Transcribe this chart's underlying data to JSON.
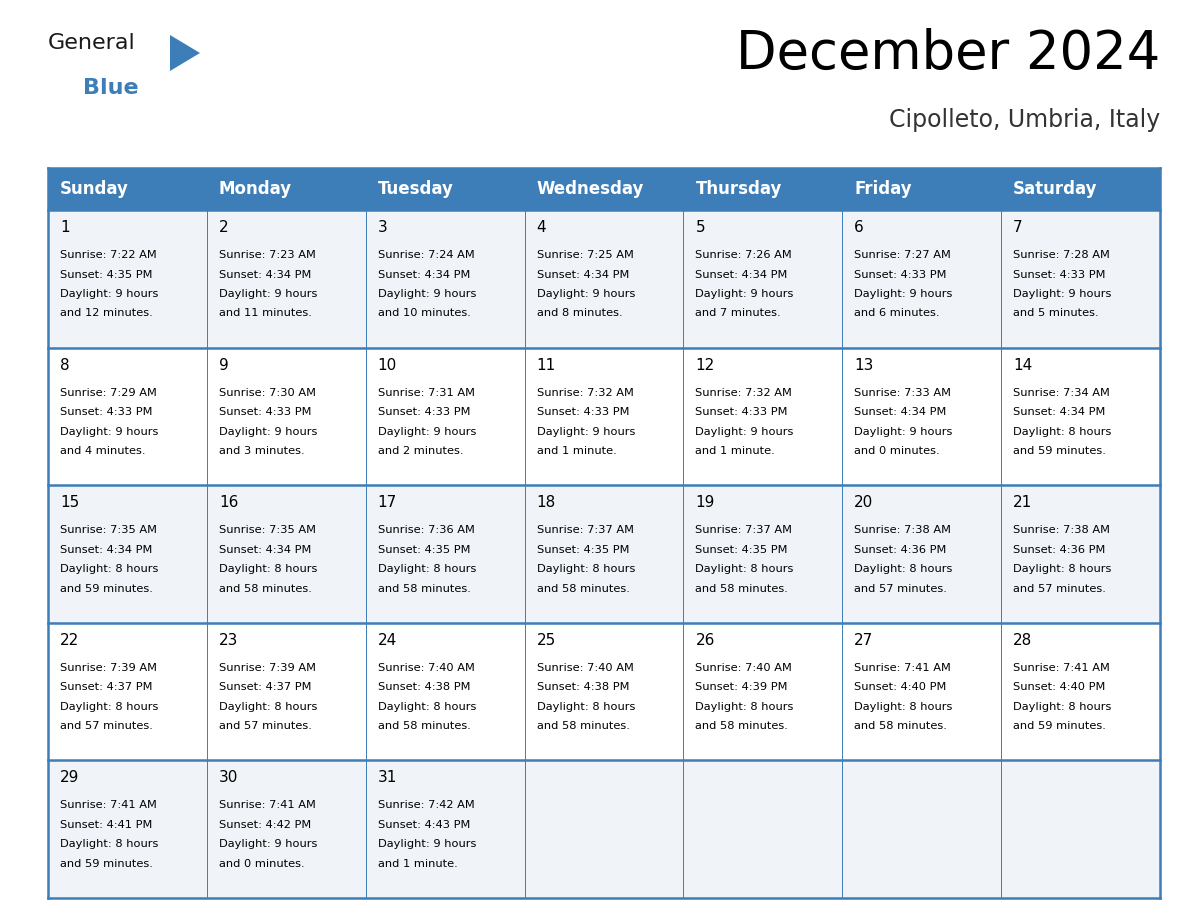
{
  "title": "December 2024",
  "subtitle": "Cipolleto, Umbria, Italy",
  "header_bg_color": "#3d7db8",
  "header_text_color": "#ffffff",
  "row_bg_colors": [
    "#f0f4f8",
    "#ffffff"
  ],
  "border_color": "#3d7db8",
  "thin_border_color": "#b0c4d8",
  "day_names": [
    "Sunday",
    "Monday",
    "Tuesday",
    "Wednesday",
    "Thursday",
    "Friday",
    "Saturday"
  ],
  "days": [
    {
      "day": 1,
      "col": 0,
      "row": 0,
      "sunrise": "7:22 AM",
      "sunset": "4:35 PM",
      "daylight": "9 hours and 12 minutes."
    },
    {
      "day": 2,
      "col": 1,
      "row": 0,
      "sunrise": "7:23 AM",
      "sunset": "4:34 PM",
      "daylight": "9 hours and 11 minutes."
    },
    {
      "day": 3,
      "col": 2,
      "row": 0,
      "sunrise": "7:24 AM",
      "sunset": "4:34 PM",
      "daylight": "9 hours and 10 minutes."
    },
    {
      "day": 4,
      "col": 3,
      "row": 0,
      "sunrise": "7:25 AM",
      "sunset": "4:34 PM",
      "daylight": "9 hours and 8 minutes."
    },
    {
      "day": 5,
      "col": 4,
      "row": 0,
      "sunrise": "7:26 AM",
      "sunset": "4:34 PM",
      "daylight": "9 hours and 7 minutes."
    },
    {
      "day": 6,
      "col": 5,
      "row": 0,
      "sunrise": "7:27 AM",
      "sunset": "4:33 PM",
      "daylight": "9 hours and 6 minutes."
    },
    {
      "day": 7,
      "col": 6,
      "row": 0,
      "sunrise": "7:28 AM",
      "sunset": "4:33 PM",
      "daylight": "9 hours and 5 minutes."
    },
    {
      "day": 8,
      "col": 0,
      "row": 1,
      "sunrise": "7:29 AM",
      "sunset": "4:33 PM",
      "daylight": "9 hours and 4 minutes."
    },
    {
      "day": 9,
      "col": 1,
      "row": 1,
      "sunrise": "7:30 AM",
      "sunset": "4:33 PM",
      "daylight": "9 hours and 3 minutes."
    },
    {
      "day": 10,
      "col": 2,
      "row": 1,
      "sunrise": "7:31 AM",
      "sunset": "4:33 PM",
      "daylight": "9 hours and 2 minutes."
    },
    {
      "day": 11,
      "col": 3,
      "row": 1,
      "sunrise": "7:32 AM",
      "sunset": "4:33 PM",
      "daylight": "9 hours and 1 minute."
    },
    {
      "day": 12,
      "col": 4,
      "row": 1,
      "sunrise": "7:32 AM",
      "sunset": "4:33 PM",
      "daylight": "9 hours and 1 minute."
    },
    {
      "day": 13,
      "col": 5,
      "row": 1,
      "sunrise": "7:33 AM",
      "sunset": "4:34 PM",
      "daylight": "9 hours and 0 minutes."
    },
    {
      "day": 14,
      "col": 6,
      "row": 1,
      "sunrise": "7:34 AM",
      "sunset": "4:34 PM",
      "daylight": "8 hours and 59 minutes."
    },
    {
      "day": 15,
      "col": 0,
      "row": 2,
      "sunrise": "7:35 AM",
      "sunset": "4:34 PM",
      "daylight": "8 hours and 59 minutes."
    },
    {
      "day": 16,
      "col": 1,
      "row": 2,
      "sunrise": "7:35 AM",
      "sunset": "4:34 PM",
      "daylight": "8 hours and 58 minutes."
    },
    {
      "day": 17,
      "col": 2,
      "row": 2,
      "sunrise": "7:36 AM",
      "sunset": "4:35 PM",
      "daylight": "8 hours and 58 minutes."
    },
    {
      "day": 18,
      "col": 3,
      "row": 2,
      "sunrise": "7:37 AM",
      "sunset": "4:35 PM",
      "daylight": "8 hours and 58 minutes."
    },
    {
      "day": 19,
      "col": 4,
      "row": 2,
      "sunrise": "7:37 AM",
      "sunset": "4:35 PM",
      "daylight": "8 hours and 58 minutes."
    },
    {
      "day": 20,
      "col": 5,
      "row": 2,
      "sunrise": "7:38 AM",
      "sunset": "4:36 PM",
      "daylight": "8 hours and 57 minutes."
    },
    {
      "day": 21,
      "col": 6,
      "row": 2,
      "sunrise": "7:38 AM",
      "sunset": "4:36 PM",
      "daylight": "8 hours and 57 minutes."
    },
    {
      "day": 22,
      "col": 0,
      "row": 3,
      "sunrise": "7:39 AM",
      "sunset": "4:37 PM",
      "daylight": "8 hours and 57 minutes."
    },
    {
      "day": 23,
      "col": 1,
      "row": 3,
      "sunrise": "7:39 AM",
      "sunset": "4:37 PM",
      "daylight": "8 hours and 57 minutes."
    },
    {
      "day": 24,
      "col": 2,
      "row": 3,
      "sunrise": "7:40 AM",
      "sunset": "4:38 PM",
      "daylight": "8 hours and 58 minutes."
    },
    {
      "day": 25,
      "col": 3,
      "row": 3,
      "sunrise": "7:40 AM",
      "sunset": "4:38 PM",
      "daylight": "8 hours and 58 minutes."
    },
    {
      "day": 26,
      "col": 4,
      "row": 3,
      "sunrise": "7:40 AM",
      "sunset": "4:39 PM",
      "daylight": "8 hours and 58 minutes."
    },
    {
      "day": 27,
      "col": 5,
      "row": 3,
      "sunrise": "7:41 AM",
      "sunset": "4:40 PM",
      "daylight": "8 hours and 58 minutes."
    },
    {
      "day": 28,
      "col": 6,
      "row": 3,
      "sunrise": "7:41 AM",
      "sunset": "4:40 PM",
      "daylight": "8 hours and 59 minutes."
    },
    {
      "day": 29,
      "col": 0,
      "row": 4,
      "sunrise": "7:41 AM",
      "sunset": "4:41 PM",
      "daylight": "8 hours and 59 minutes."
    },
    {
      "day": 30,
      "col": 1,
      "row": 4,
      "sunrise": "7:41 AM",
      "sunset": "4:42 PM",
      "daylight": "9 hours and 0 minutes."
    },
    {
      "day": 31,
      "col": 2,
      "row": 4,
      "sunrise": "7:42 AM",
      "sunset": "4:43 PM",
      "daylight": "9 hours and 1 minute."
    }
  ],
  "logo_text_general": "General",
  "logo_text_blue": "Blue",
  "logo_blue_color": "#3d7db8",
  "logo_black_color": "#1a1a1a",
  "title_fontsize": 38,
  "subtitle_fontsize": 17,
  "header_fontsize": 12,
  "day_num_fontsize": 11,
  "cell_text_fontsize": 8.2
}
